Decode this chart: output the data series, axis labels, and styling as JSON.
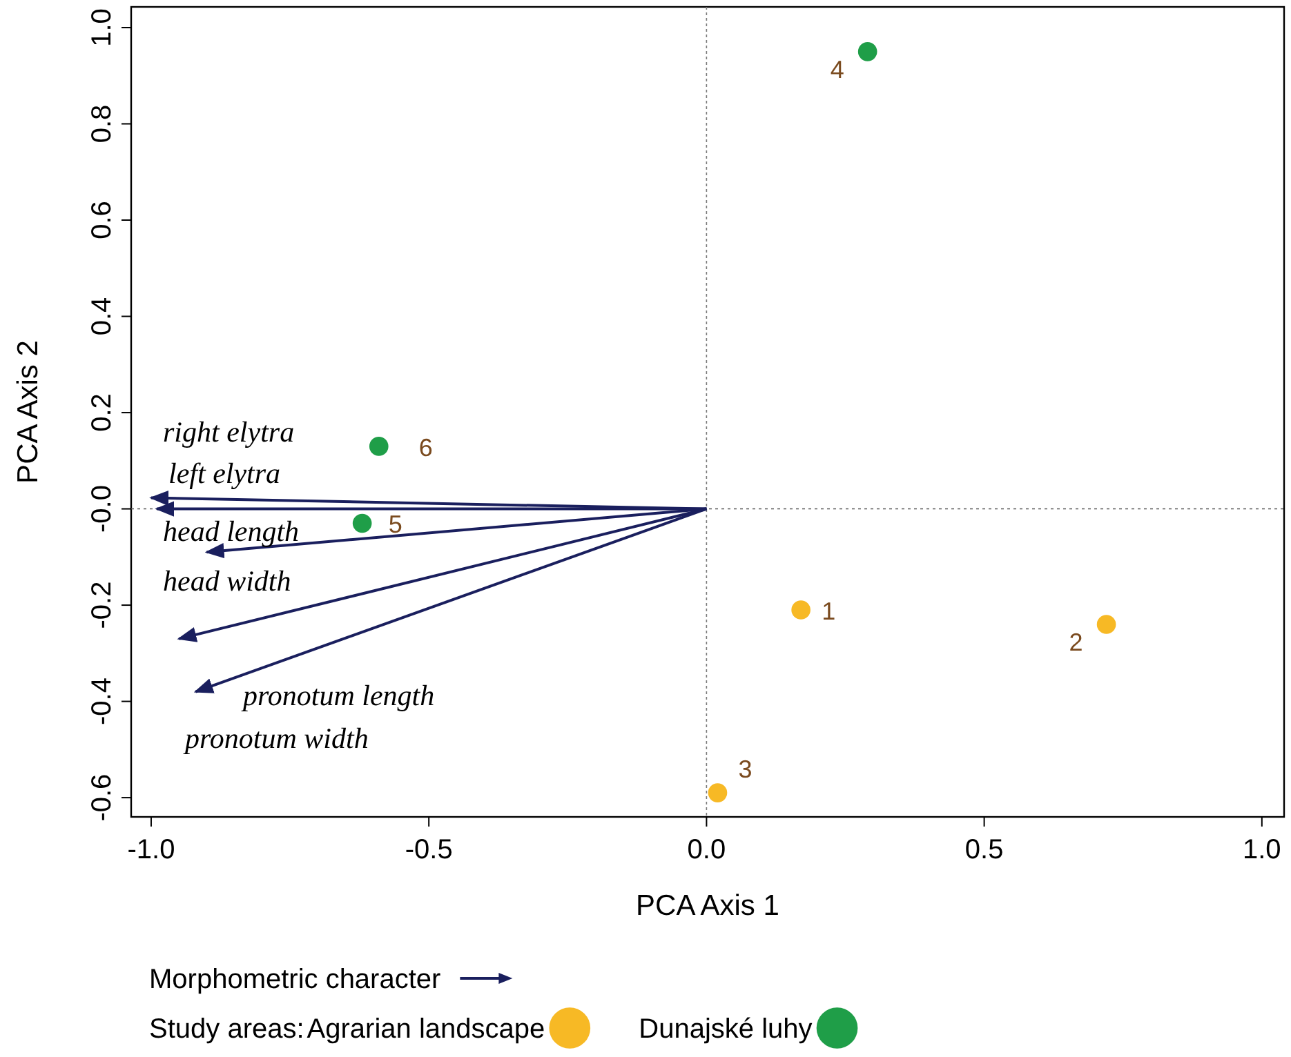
{
  "chart_data": {
    "type": "scatter",
    "xlabel": "PCA Axis 1",
    "ylabel": "PCA Axis 2",
    "legend_title": "Study areas:",
    "legend": "bottom",
    "marker": "circle",
    "grid": false,
    "xlim": [
      -1.036,
      1.04
    ],
    "ylim": [
      -0.64,
      1.043
    ],
    "xticks": [
      {
        "value": -1,
        "label": "-1.0"
      },
      {
        "value": -0.5,
        "label": "-0.5"
      },
      {
        "value": 0,
        "label": "0.0"
      },
      {
        "value": 0.5,
        "label": "0.5"
      },
      {
        "value": 1,
        "label": "1.0"
      }
    ],
    "yticks": [
      {
        "value": -0.6,
        "label": "-0.6"
      },
      {
        "value": -0.4,
        "label": "-0.4"
      },
      {
        "value": -0.2,
        "label": "-0.2"
      },
      {
        "value": 0,
        "label": "-0.0"
      },
      {
        "value": 0.2,
        "label": "0.2"
      },
      {
        "value": 0.4,
        "label": "0.4"
      },
      {
        "value": 0.6,
        "label": "0.6"
      },
      {
        "value": 0.8,
        "label": "0.8"
      },
      {
        "value": 1,
        "label": "1.0"
      }
    ],
    "ref_lines": [
      {
        "axis": "x",
        "value": 0,
        "line_style": "dotted",
        "color": "#7a7a7a"
      },
      {
        "axis": "y",
        "value": 0,
        "line_style": "dotted",
        "color": "#555555"
      }
    ],
    "series": [
      {
        "type": "line",
        "marker": "none",
        "color": "#1a1f5e",
        "x": [
          0,
          -1.0
        ],
        "values": [
          0,
          0.023
        ]
      },
      {
        "type": "line",
        "marker": "none",
        "color": "#1a1f5e",
        "x": [
          0,
          -0.99
        ],
        "values": [
          0,
          0.0
        ]
      },
      {
        "type": "line",
        "marker": "none",
        "color": "#1a1f5e",
        "x": [
          0,
          -0.9
        ],
        "values": [
          0,
          -0.09
        ]
      },
      {
        "type": "line",
        "marker": "none",
        "color": "#1a1f5e",
        "x": [
          0,
          -0.95
        ],
        "values": [
          0,
          -0.27
        ]
      },
      {
        "type": "line",
        "marker": "none",
        "color": "#1a1f5e",
        "x": [
          0,
          -0.92
        ],
        "values": [
          0,
          -0.38
        ]
      },
      {
        "name": "Agrarian landscape",
        "color": "#f7b925",
        "x": [
          0.17,
          0.72,
          0.02
        ],
        "values": [
          -0.21,
          -0.24,
          -0.59
        ]
      },
      {
        "name": "Dunajské luhy",
        "color": "#1f9e48",
        "x": [
          0.29,
          -0.62,
          -0.59
        ],
        "values": [
          0.95,
          -0.03,
          0.13
        ]
      }
    ],
    "annotations": [
      "right elytra",
      "left elytra",
      "head length",
      "head width",
      "pronotum length",
      "pronotum width",
      {
        "text": "1",
        "x": 0.17,
        "y": -0.21
      },
      {
        "text": "2",
        "x": 0.72,
        "y": -0.24
      },
      {
        "text": "3",
        "x": 0.02,
        "y": -0.59
      },
      {
        "text": "4",
        "x": 0.29,
        "y": 0.95
      },
      {
        "text": "5",
        "x": -0.62,
        "y": -0.03
      },
      {
        "text": "6",
        "x": -0.59,
        "y": 0.13
      },
      "Morphometric character"
    ]
  }
}
